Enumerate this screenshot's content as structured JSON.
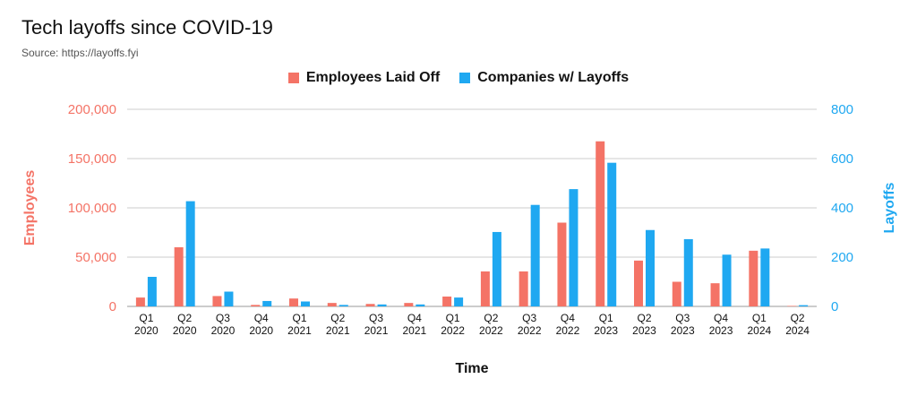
{
  "header": {
    "title": "Tech layoffs since COVID-19",
    "subtitle": "Source: https://layoffs.fyi"
  },
  "colors": {
    "employees": "#F47366",
    "companies": "#1FA8F1",
    "grid": "#cccccc",
    "axis_text": "#111111"
  },
  "chart_data": {
    "type": "bar",
    "title": "Tech layoffs since COVID-19",
    "subtitle": "Source: https://layoffs.fyi",
    "xlabel": "Time",
    "ylabel_left": "Employees",
    "ylabel_right": "Layoffs",
    "legend_position": "top-center",
    "grid": true,
    "categories": [
      [
        "Q1",
        "2020"
      ],
      [
        "Q2",
        "2020"
      ],
      [
        "Q3",
        "2020"
      ],
      [
        "Q4",
        "2020"
      ],
      [
        "Q1",
        "2021"
      ],
      [
        "Q2",
        "2021"
      ],
      [
        "Q3",
        "2021"
      ],
      [
        "Q4",
        "2021"
      ],
      [
        "Q1",
        "2022"
      ],
      [
        "Q2",
        "2022"
      ],
      [
        "Q3",
        "2022"
      ],
      [
        "Q4",
        "2022"
      ],
      [
        "Q1",
        "2023"
      ],
      [
        "Q2",
        "2023"
      ],
      [
        "Q3",
        "2023"
      ],
      [
        "Q4",
        "2023"
      ],
      [
        "Q1",
        "2024"
      ],
      [
        "Q2",
        "2024"
      ]
    ],
    "ylim_left": [
      0,
      200000
    ],
    "ylim_right": [
      0,
      800
    ],
    "yticks_left": [
      "0",
      "50,000",
      "100,000",
      "150,000",
      "200,000"
    ],
    "yticks_right": [
      "0",
      "200",
      "400",
      "600",
      "800"
    ],
    "series": [
      {
        "name": "Employees Laid Off",
        "axis": "left",
        "values": [
          9000,
          60000,
          10500,
          1500,
          8000,
          3500,
          2500,
          3500,
          10000,
          35500,
          35500,
          85000,
          167500,
          46500,
          25000,
          23500,
          56500,
          500
        ]
      },
      {
        "name": "Companies w/ Layoffs",
        "axis": "right",
        "values": [
          120,
          427,
          60,
          22,
          20,
          6,
          8,
          8,
          36,
          302,
          412,
          476,
          583,
          310,
          273,
          210,
          235,
          5
        ]
      }
    ]
  }
}
